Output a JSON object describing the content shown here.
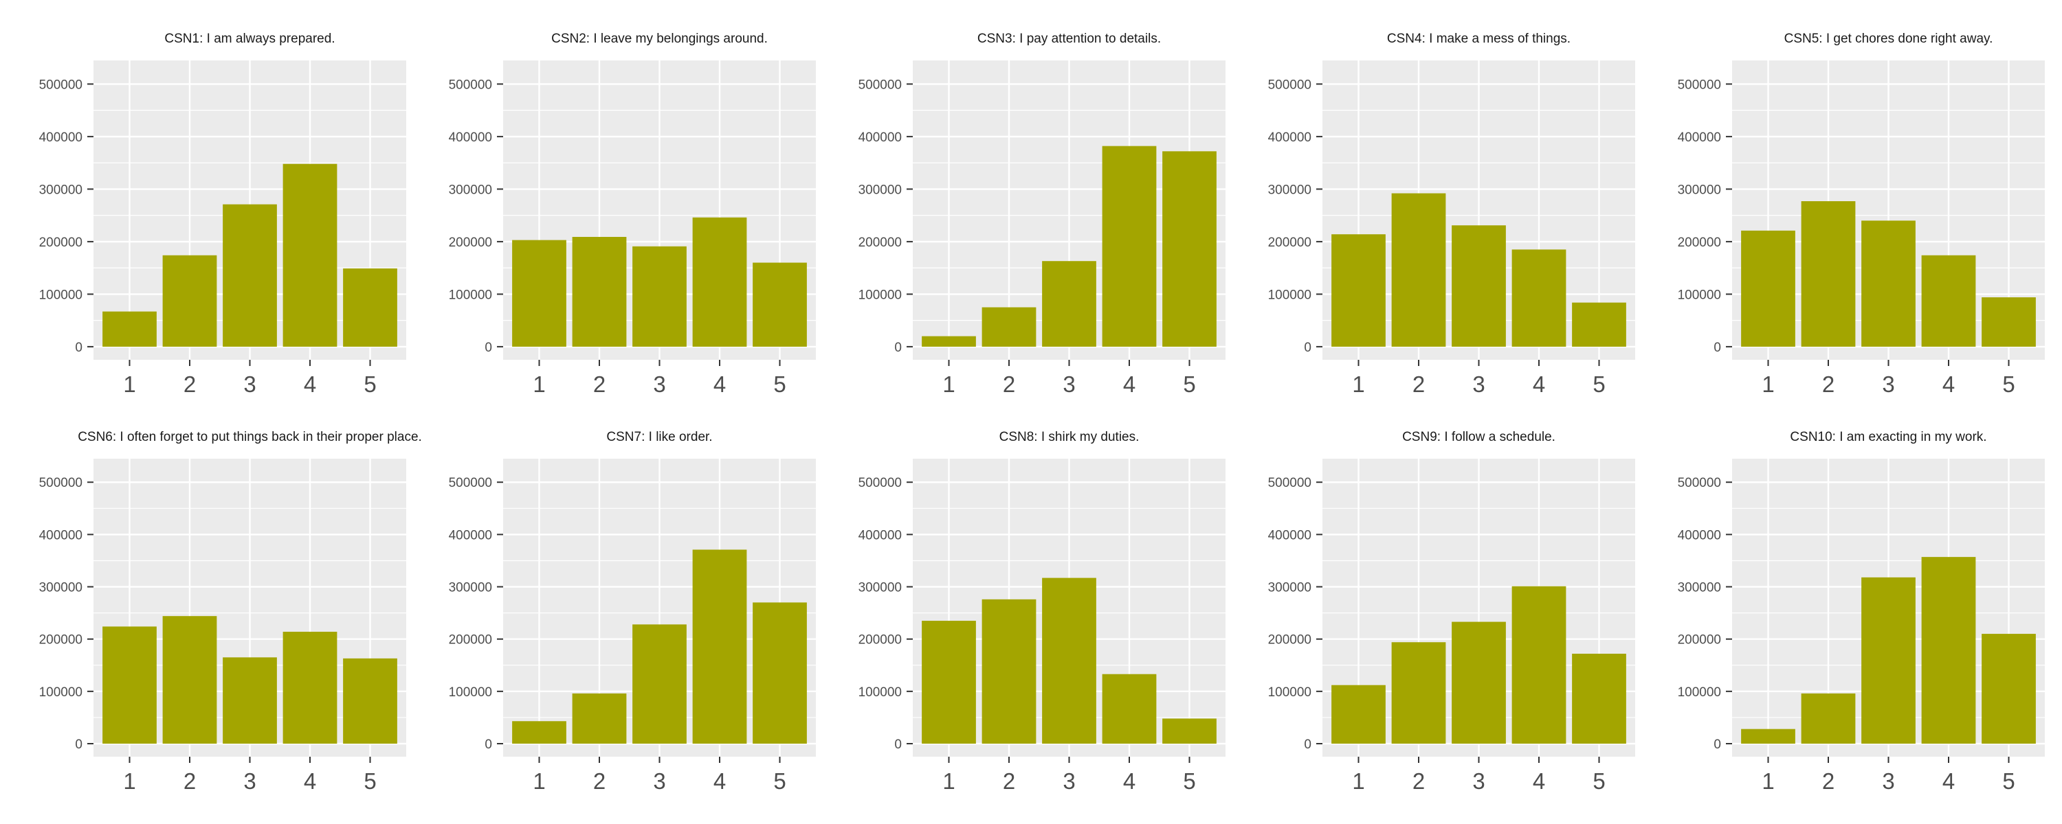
{
  "chart_data": [
    {
      "type": "bar",
      "title": "CSN1: I am always prepared.",
      "categories": [
        "1",
        "2",
        "3",
        "4",
        "5"
      ],
      "values": [
        67000,
        174000,
        271000,
        348000,
        149000
      ],
      "ylim": [
        0,
        520000
      ],
      "yticks": [
        0,
        100000,
        200000,
        300000,
        400000,
        500000
      ],
      "grid": true
    },
    {
      "type": "bar",
      "title": "CSN2: I leave my belongings around.",
      "categories": [
        "1",
        "2",
        "3",
        "4",
        "5"
      ],
      "values": [
        203000,
        209000,
        191000,
        246000,
        160000
      ],
      "ylim": [
        0,
        520000
      ],
      "yticks": [
        0,
        100000,
        200000,
        300000,
        400000,
        500000
      ],
      "grid": true
    },
    {
      "type": "bar",
      "title": "CSN3: I pay attention to details.",
      "categories": [
        "1",
        "2",
        "3",
        "4",
        "5"
      ],
      "values": [
        20000,
        75000,
        163000,
        382000,
        372000
      ],
      "ylim": [
        0,
        520000
      ],
      "yticks": [
        0,
        100000,
        200000,
        300000,
        400000,
        500000
      ],
      "grid": true
    },
    {
      "type": "bar",
      "title": "CSN4: I make a mess of things.",
      "categories": [
        "1",
        "2",
        "3",
        "4",
        "5"
      ],
      "values": [
        214000,
        292000,
        231000,
        185000,
        84000
      ],
      "ylim": [
        0,
        520000
      ],
      "yticks": [
        0,
        100000,
        200000,
        300000,
        400000,
        500000
      ],
      "grid": true
    },
    {
      "type": "bar",
      "title": "CSN5: I get chores done right away.",
      "categories": [
        "1",
        "2",
        "3",
        "4",
        "5"
      ],
      "values": [
        221000,
        277000,
        240000,
        174000,
        94000
      ],
      "ylim": [
        0,
        520000
      ],
      "yticks": [
        0,
        100000,
        200000,
        300000,
        400000,
        500000
      ],
      "grid": true
    },
    {
      "type": "bar",
      "title": "CSN6: I often forget to put things back in their proper place.",
      "categories": [
        "1",
        "2",
        "3",
        "4",
        "5"
      ],
      "values": [
        224000,
        244000,
        165000,
        214000,
        163000
      ],
      "ylim": [
        0,
        520000
      ],
      "yticks": [
        0,
        100000,
        200000,
        300000,
        400000,
        500000
      ],
      "grid": true
    },
    {
      "type": "bar",
      "title": "CSN7: I like order.",
      "categories": [
        "1",
        "2",
        "3",
        "4",
        "5"
      ],
      "values": [
        43000,
        96000,
        228000,
        371000,
        270000
      ],
      "ylim": [
        0,
        520000
      ],
      "yticks": [
        0,
        100000,
        200000,
        300000,
        400000,
        500000
      ],
      "grid": true
    },
    {
      "type": "bar",
      "title": "CSN8: I shirk my duties.",
      "categories": [
        "1",
        "2",
        "3",
        "4",
        "5"
      ],
      "values": [
        235000,
        276000,
        317000,
        133000,
        48000
      ],
      "ylim": [
        0,
        520000
      ],
      "yticks": [
        0,
        100000,
        200000,
        300000,
        400000,
        500000
      ],
      "grid": true
    },
    {
      "type": "bar",
      "title": "CSN9: I follow a schedule.",
      "categories": [
        "1",
        "2",
        "3",
        "4",
        "5"
      ],
      "values": [
        112000,
        194000,
        233000,
        301000,
        172000
      ],
      "ylim": [
        0,
        520000
      ],
      "yticks": [
        0,
        100000,
        200000,
        300000,
        400000,
        500000
      ],
      "grid": true
    },
    {
      "type": "bar",
      "title": "CSN10: I am exacting in my work.",
      "categories": [
        "1",
        "2",
        "3",
        "4",
        "5"
      ],
      "values": [
        28000,
        96000,
        318000,
        357000,
        210000
      ],
      "ylim": [
        0,
        520000
      ],
      "yticks": [
        0,
        100000,
        200000,
        300000,
        400000,
        500000
      ],
      "grid": true
    }
  ],
  "colors": {
    "bar": "#a3a500",
    "panel_bg": "#ebebeb",
    "grid": "#ffffff",
    "text": "#4d4d4d",
    "title": "#1a1a1a"
  }
}
